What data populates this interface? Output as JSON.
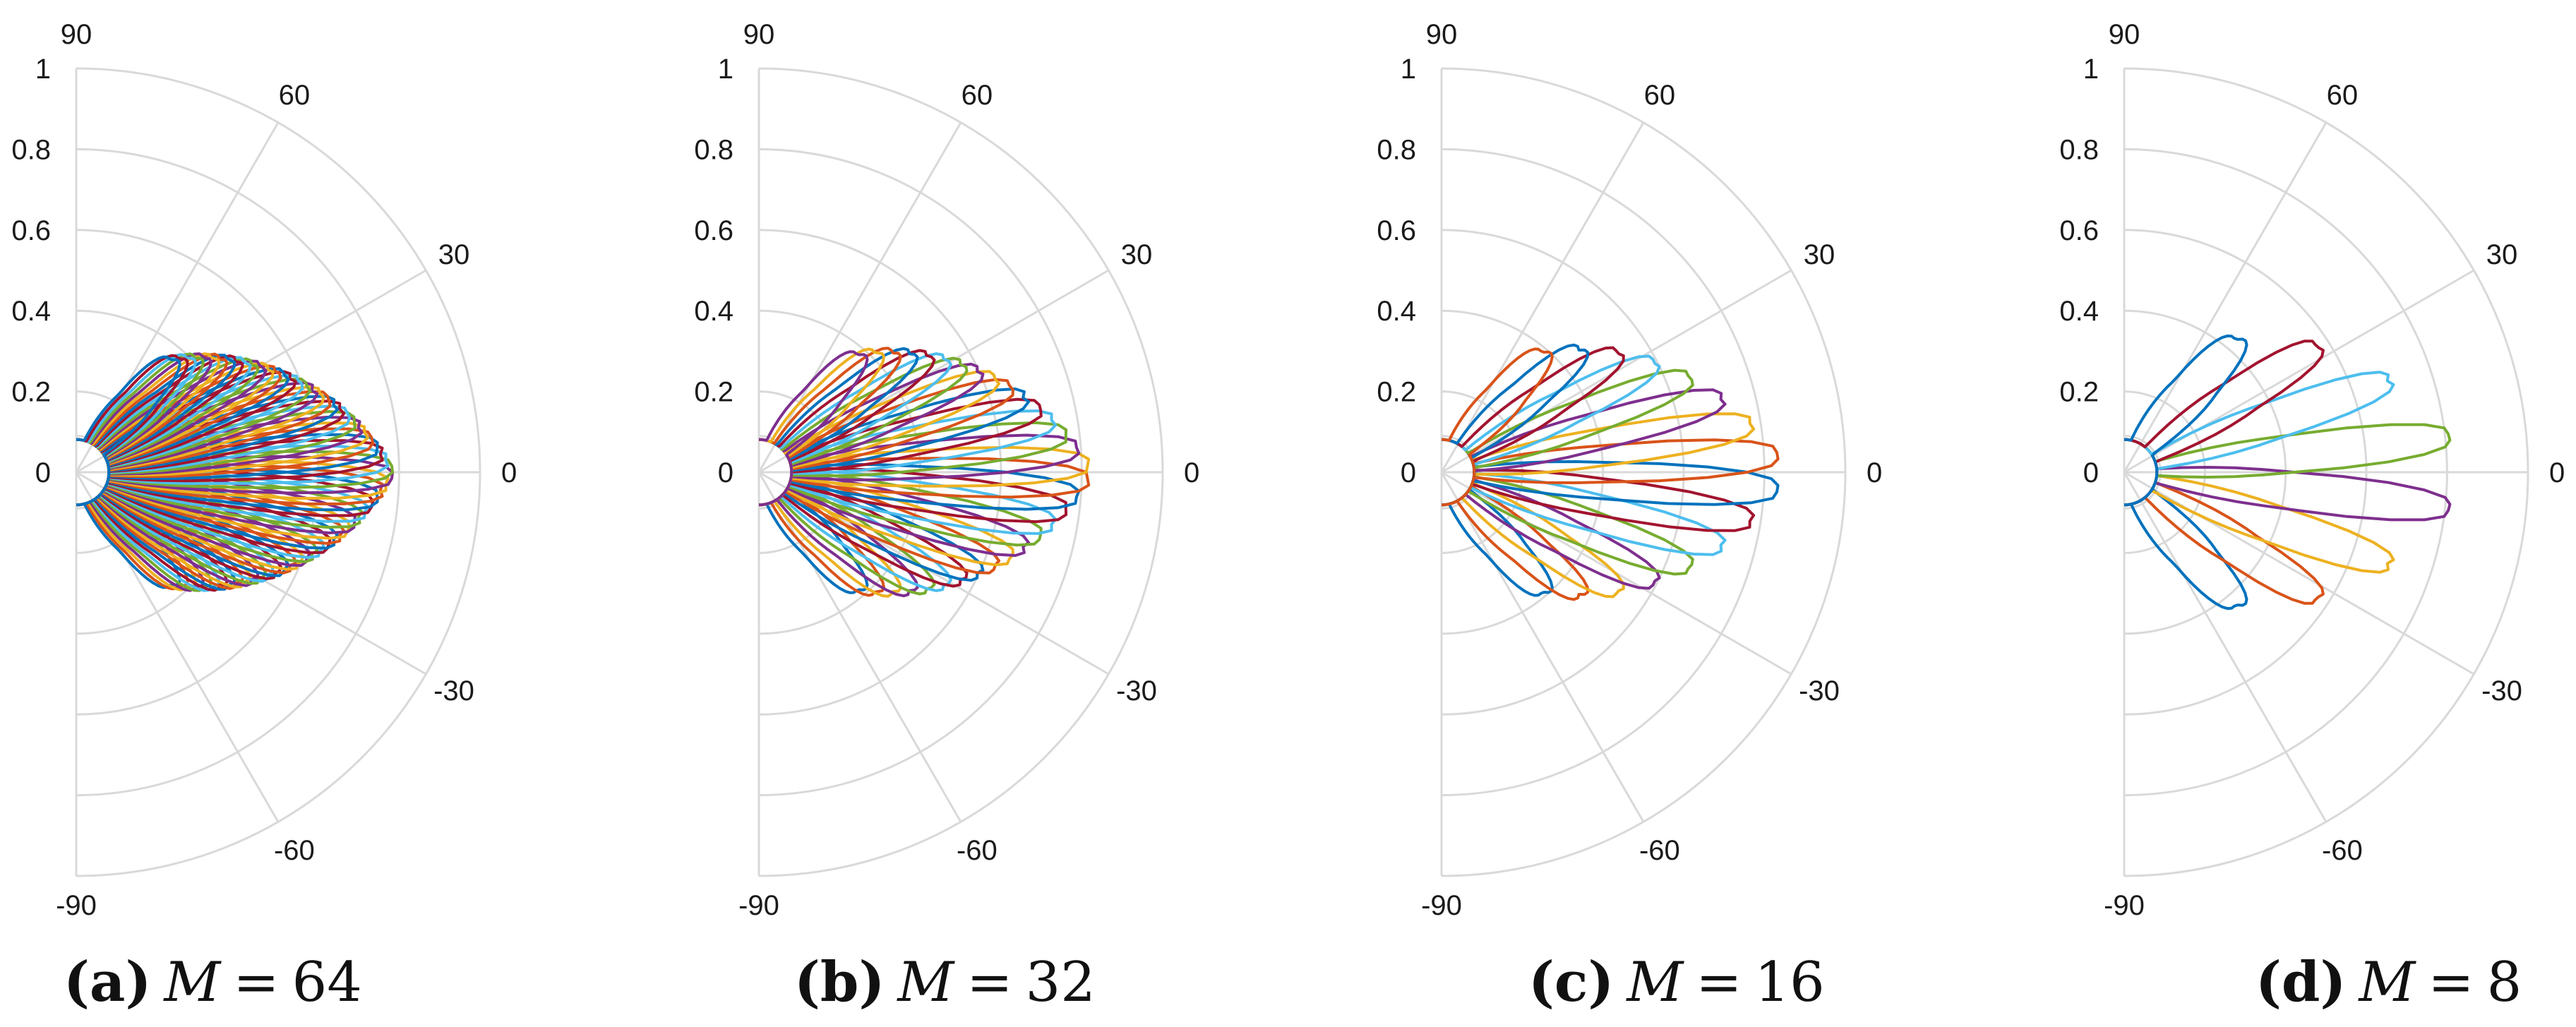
{
  "chart_data": [
    {
      "type": "polar-line",
      "panel_label": "a",
      "caption_var": "M",
      "caption_eq": "=",
      "caption_value": "64",
      "r_range": [
        0,
        1
      ],
      "r_ticks": [
        "0",
        "0.2",
        "0.4",
        "0.6",
        "0.8",
        "1"
      ],
      "theta_range_deg": [
        -90,
        90
      ],
      "theta_ticks": [
        "90",
        "60",
        "30",
        "0",
        "-30",
        "-60",
        "-90"
      ],
      "grid": true,
      "beam_count": 64,
      "beam_peak_gain": 0.44,
      "beam_edge_gain": 0.78,
      "beam_angle_range_deg": [
        -50,
        50
      ]
    },
    {
      "type": "polar-line",
      "panel_label": "b",
      "caption_var": "M",
      "caption_eq": "=",
      "caption_value": "32",
      "r_range": [
        0,
        1
      ],
      "r_ticks": [
        "0",
        "0.2",
        "0.4",
        "0.6",
        "0.8",
        "1"
      ],
      "theta_range_deg": [
        -90,
        90
      ],
      "theta_ticks": [
        "90",
        "60",
        "30",
        "0",
        "-30",
        "-60",
        "-90"
      ],
      "grid": true,
      "beam_count": 32,
      "beam_peak_gain": 0.46,
      "beam_edge_gain": 0.82,
      "beam_angle_range_deg": [
        -50,
        50
      ]
    },
    {
      "type": "polar-line",
      "panel_label": "c",
      "caption_var": "M",
      "caption_eq": "=",
      "caption_value": "16",
      "r_range": [
        0,
        1
      ],
      "r_ticks": [
        "0",
        "0.2",
        "0.4",
        "0.6",
        "0.8",
        "1"
      ],
      "theta_range_deg": [
        -90,
        90
      ],
      "theta_ticks": [
        "90",
        "60",
        "30",
        "0",
        "-30",
        "-60",
        "-90"
      ],
      "grid": true,
      "beam_count": 16,
      "beam_peak_gain": 0.47,
      "beam_edge_gain": 0.85,
      "beam_angle_range_deg": [
        -50,
        50
      ]
    },
    {
      "type": "polar-line",
      "panel_label": "d",
      "caption_var": "M",
      "caption_eq": "=",
      "caption_value": "8",
      "r_range": [
        0,
        1
      ],
      "r_ticks": [
        "0",
        "0.2",
        "0.4",
        "0.6",
        "0.8",
        "1"
      ],
      "theta_range_deg": [
        -90,
        90
      ],
      "theta_ticks": [
        "90",
        "60",
        "30",
        "0",
        "-30",
        "-60",
        "-90"
      ],
      "grid": true,
      "beam_count": 8,
      "beam_peak_gain": 0.52,
      "beam_edge_gain": 0.85,
      "beam_angle_range_deg": [
        -50,
        50
      ]
    }
  ],
  "colors": {
    "grid": "#d9d9d9",
    "text": "#1a1a1a",
    "series": [
      "#0072BD",
      "#D95319",
      "#EDB120",
      "#7E2F8E",
      "#77AC30",
      "#4DBEEE",
      "#A2142F"
    ]
  }
}
